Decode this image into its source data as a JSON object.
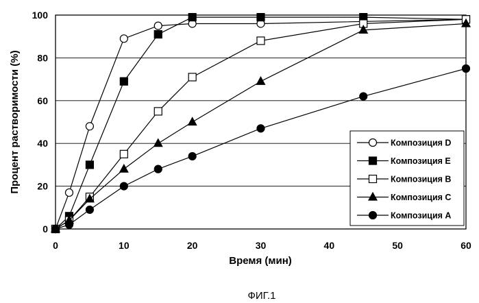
{
  "chart_data": {
    "type": "line",
    "title": "",
    "xlabel": "Время (мин)",
    "ylabel": "Процент растворимости (%)",
    "xlim": [
      0,
      60
    ],
    "ylim": [
      0,
      100
    ],
    "xticks": [
      0,
      10,
      20,
      30,
      40,
      50,
      60
    ],
    "yticks": [
      0,
      20,
      40,
      60,
      80,
      100
    ],
    "grid": "horizontal",
    "legend_position": "bottom-right",
    "series": [
      {
        "name": "Композиция D",
        "marker": "circle-open",
        "x": [
          0,
          2,
          5,
          10,
          15,
          20,
          30,
          60
        ],
        "y": [
          0,
          17,
          48,
          89,
          95,
          96,
          96,
          98
        ]
      },
      {
        "name": "Композиция E",
        "marker": "square-filled",
        "x": [
          0,
          2,
          5,
          10,
          15,
          20,
          30,
          45,
          60
        ],
        "y": [
          0,
          6,
          30,
          69,
          91,
          99,
          99,
          99,
          98
        ]
      },
      {
        "name": "Композиция B",
        "marker": "square-open",
        "x": [
          0,
          2,
          5,
          10,
          15,
          20,
          30,
          45,
          60
        ],
        "y": [
          0,
          4,
          15,
          35,
          55,
          71,
          88,
          96,
          98
        ]
      },
      {
        "name": "Композиция C",
        "marker": "triangle-filled",
        "x": [
          0,
          2,
          5,
          10,
          15,
          20,
          30,
          45,
          60
        ],
        "y": [
          0,
          4,
          14,
          28,
          40,
          50,
          69,
          93,
          96
        ]
      },
      {
        "name": "Композиция A",
        "marker": "circle-filled",
        "x": [
          0,
          2,
          5,
          10,
          15,
          20,
          30,
          45,
          60
        ],
        "y": [
          0,
          2,
          9,
          20,
          28,
          34,
          47,
          62,
          75
        ]
      }
    ]
  },
  "caption": "ФИГ.1"
}
